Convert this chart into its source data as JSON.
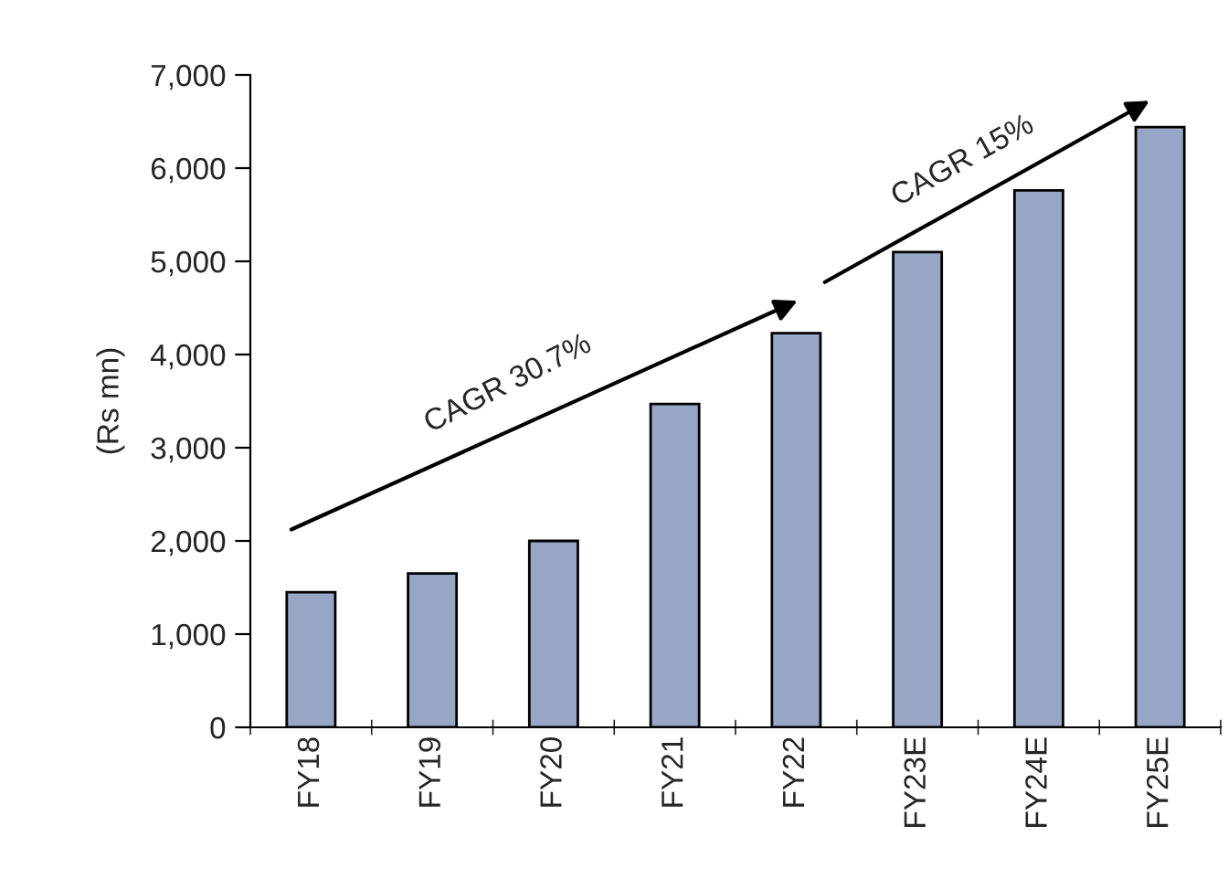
{
  "chart_data": {
    "type": "bar",
    "ylabel": "(Rs mn)",
    "categories": [
      "FY18",
      "FY19",
      "FY20",
      "FY21",
      "FY22",
      "FY23E",
      "FY24E",
      "FY25E"
    ],
    "values": [
      1450,
      1650,
      2000,
      3470,
      4230,
      5100,
      5760,
      6440
    ],
    "color": "#97a6c4",
    "ylim": [
      0,
      7000
    ],
    "yticks": [
      {
        "value": 0,
        "label": "0"
      },
      {
        "value": 1000,
        "label": "1,000"
      },
      {
        "value": 2000,
        "label": "2,000"
      },
      {
        "value": 3000,
        "label": "3,000"
      },
      {
        "value": 4000,
        "label": "4,000"
      },
      {
        "value": 5000,
        "label": "5,000"
      },
      {
        "value": 6000,
        "label": "6,000"
      },
      {
        "value": 7000,
        "label": "7,000"
      }
    ],
    "annotations": [
      "CAGR 30.7%",
      "CAGR 15%"
    ],
    "grid": false,
    "legend": false
  }
}
